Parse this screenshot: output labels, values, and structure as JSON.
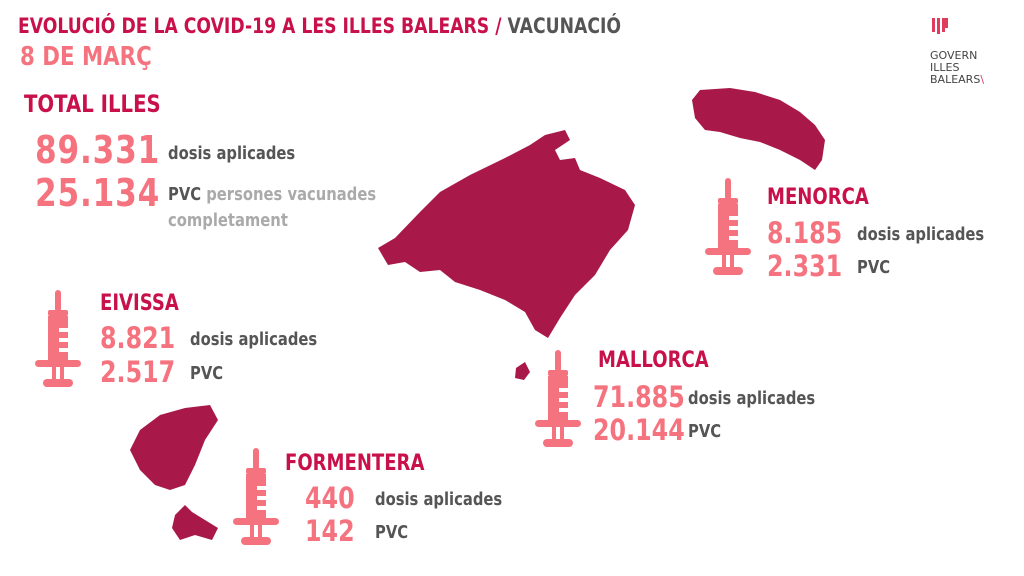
{
  "header": {
    "title_main": "EVOLUCIÓ DE LA COVID-19 A LES ILLES BALEARS",
    "title_sep": " / ",
    "title_sub": "VACUNACIÓ",
    "date": "8 DE MARÇ"
  },
  "logo": {
    "lines": [
      "GOVERN",
      "ILLES",
      "BALEARS"
    ]
  },
  "total": {
    "heading": "TOTAL ILLES",
    "doses": "89.331",
    "doses_label": "dosis aplicades",
    "pvc": "25.134",
    "pvc_label": "PVC",
    "pvc_desc_1": "persones vacunades",
    "pvc_desc_2": "completament"
  },
  "islands": {
    "menorca": {
      "name": "MENORCA",
      "doses": "8.185",
      "doses_label": "dosis aplicades",
      "pvc": "2.331",
      "pvc_label": "PVC"
    },
    "eivissa": {
      "name": "EIVISSA",
      "doses": "8.821",
      "doses_label": "dosis aplicades",
      "pvc": "2.517",
      "pvc_label": "PVC"
    },
    "mallorca": {
      "name": "MALLORCA",
      "doses": "71.885",
      "doses_label": "dosis aplicades",
      "pvc": "20.144",
      "pvc_label": "PVC"
    },
    "formentera": {
      "name": "FORMENTERA",
      "doses": "440",
      "doses_label": "dosis aplicades",
      "pvc": "142",
      "pvc_label": "PVC"
    }
  },
  "colors": {
    "title": "#c8104a",
    "numbers": "#f5737f",
    "map": "#a8194a",
    "text": "#555555"
  },
  "icons": [
    "syringe-icon",
    "government-shield-icon"
  ]
}
